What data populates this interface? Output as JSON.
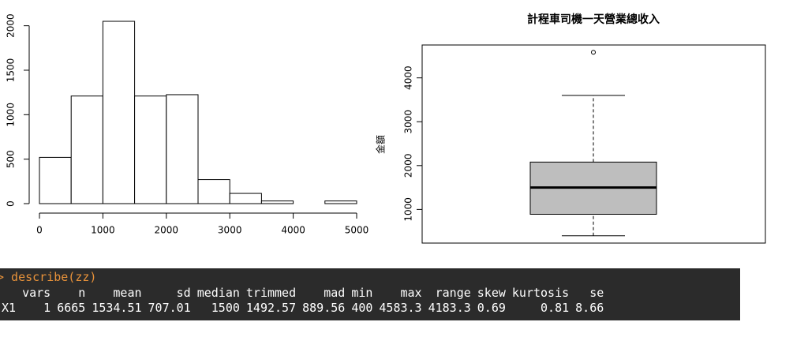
{
  "chart_data": [
    {
      "type": "histogram",
      "bins": [
        0,
        500,
        1000,
        1500,
        2000,
        2500,
        3000,
        3500,
        4000,
        4500,
        5000
      ],
      "values": [
        520,
        1210,
        2050,
        1210,
        1225,
        270,
        115,
        30,
        0,
        30
      ],
      "color": "#ffffff",
      "xlim": [
        0,
        5000
      ],
      "xticks": [
        0,
        1000,
        2000,
        3000,
        4000,
        5000
      ],
      "ylim": [
        0,
        2050
      ],
      "yticks": [
        0,
        500,
        1000,
        1500,
        2000
      ]
    },
    {
      "type": "box",
      "title": "計程車司機一天營業總收入",
      "ylabel": "金額",
      "min": 400,
      "q1": 890,
      "median": 1500,
      "q3": 2080,
      "max": 3600,
      "outliers": [
        4583.3
      ],
      "color": "#bebebe",
      "ylim": [
        233,
        4750
      ],
      "yticks": [
        1000,
        2000,
        3000,
        4000
      ]
    }
  ],
  "console": {
    "command": "> describe(zz)",
    "headers": [
      "vars",
      "n",
      "mean",
      "sd",
      "median",
      "trimmed",
      "mad",
      "min",
      "max",
      "range",
      "skew",
      "kurtosis",
      "se"
    ],
    "row_label": "X1",
    "row": [
      1,
      6665,
      1534.51,
      707.01,
      1500,
      1492.57,
      889.56,
      400,
      4583.3,
      4183.3,
      0.69,
      0.81,
      8.66
    ]
  }
}
